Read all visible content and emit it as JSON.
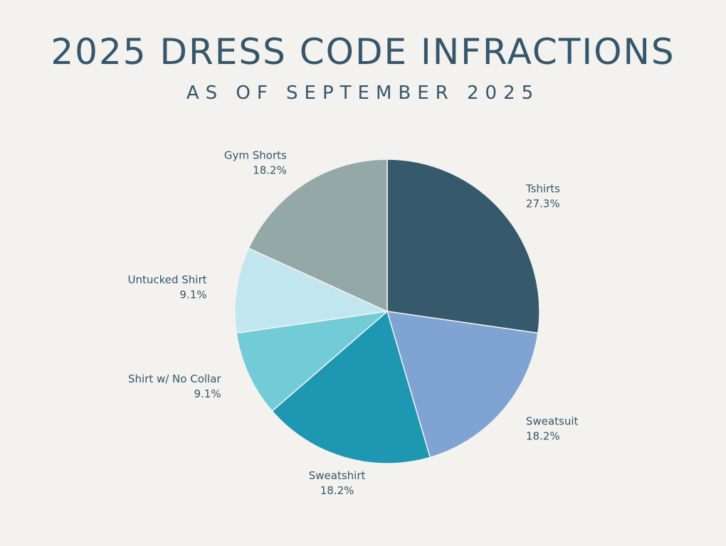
{
  "chart_data": {
    "type": "pie",
    "title": "2025 DRESS CODE INFRACTIONS",
    "subtitle": "AS OF SEPTEMBER 2025",
    "slices": [
      {
        "label": "Tshirts",
        "value": 27.3,
        "value_label": "27.3%",
        "color": "#36596b"
      },
      {
        "label": "Sweatsuit",
        "value": 18.2,
        "value_label": "18.2%",
        "color": "#7fa3d3"
      },
      {
        "label": "Sweatshirt",
        "value": 18.2,
        "value_label": "18.2%",
        "color": "#1e97b3"
      },
      {
        "label": "Shirt w/ No Collar",
        "value": 9.1,
        "value_label": "9.1%",
        "color": "#72ccd7"
      },
      {
        "label": "Untucked Shirt",
        "value": 9.1,
        "value_label": "9.1%",
        "color": "#c2e6f0"
      },
      {
        "label": "Gym Shorts",
        "value": 18.2,
        "value_label": "18.2%",
        "color": "#93a8a7"
      }
    ]
  }
}
